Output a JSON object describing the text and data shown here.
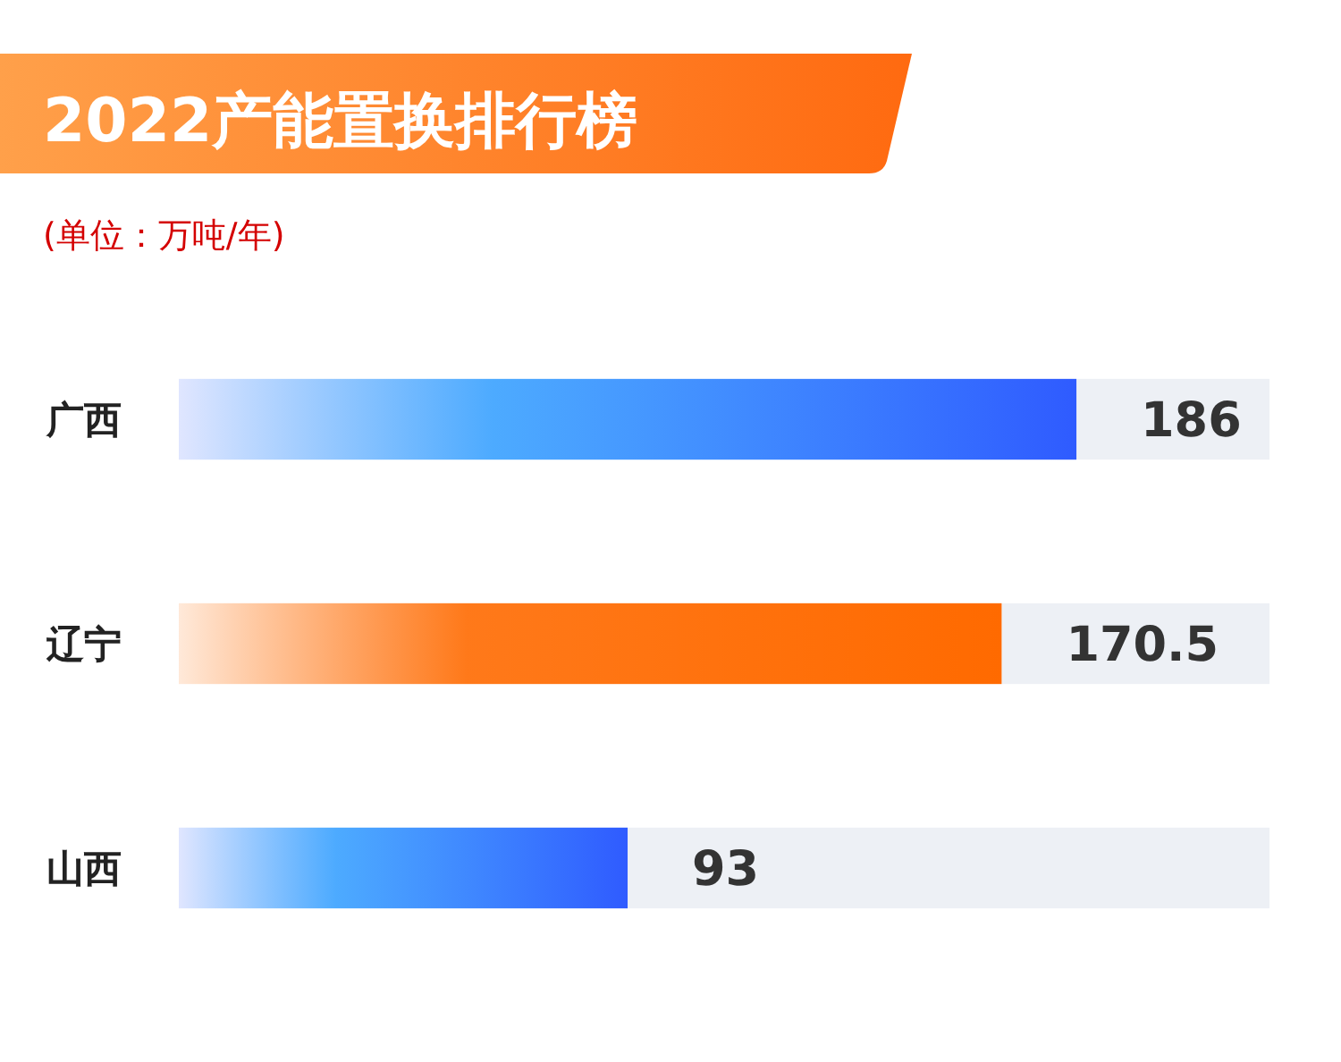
{
  "chart_data": {
    "type": "bar",
    "orientation": "horizontal",
    "title": "2022产能置换排行榜",
    "subtitle": "(单位：万吨/年)",
    "categories": [
      "广西",
      "辽宁",
      "山西"
    ],
    "values": [
      186,
      170.5,
      93
    ],
    "colors": [
      "#2f5bff",
      "#ff6a00",
      "#2f5bff"
    ],
    "data_labels": true
  }
}
